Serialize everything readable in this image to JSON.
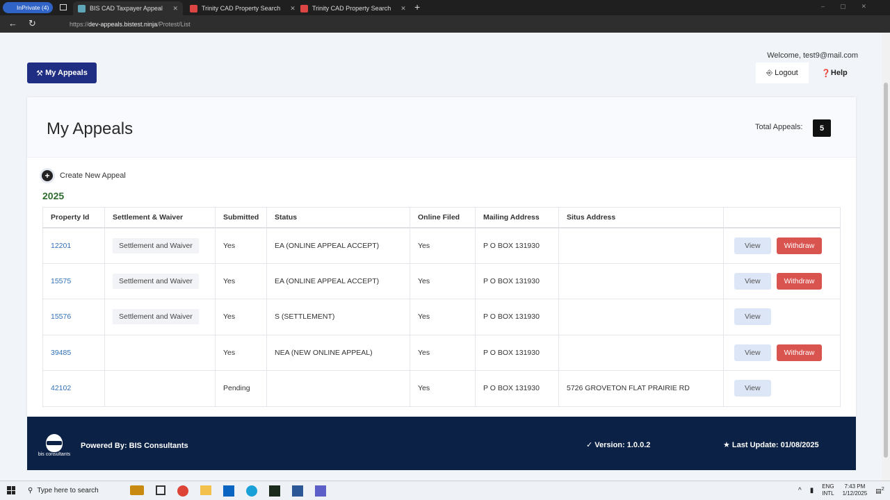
{
  "browser": {
    "profile": "InPrivate (4)",
    "tabs": [
      {
        "title": "BIS CAD Taxpayer Appeal",
        "active": true
      },
      {
        "title": "Trinity CAD Property Search"
      },
      {
        "title": "Trinity CAD Property Search"
      }
    ],
    "url_prefix": "https://",
    "url_domain": "dev-appeals.bistest.ninja",
    "url_path": "/Protest/List"
  },
  "header": {
    "my_appeals_button": "My Appeals",
    "welcome": "Welcome, test9@mail.com",
    "logout": "Logout",
    "help": "Help"
  },
  "main": {
    "title": "My Appeals",
    "total_label": "Total Appeals:",
    "total_count": "5",
    "create_label": "Create New Appeal",
    "year": "2025",
    "columns": [
      "Property Id",
      "Settlement & Waiver",
      "Submitted",
      "Status",
      "Online Filed",
      "Mailing Address",
      "Situs Address",
      ""
    ],
    "rows": [
      {
        "id": "12201",
        "settlement": "Settlement and Waiver",
        "submitted": "Yes",
        "status": "EA (ONLINE APPEAL ACCEPT)",
        "online": "Yes",
        "mailing": "P O BOX 131930",
        "situs": "",
        "view": "View",
        "withdraw": "Withdraw"
      },
      {
        "id": "15575",
        "settlement": "Settlement and Waiver",
        "submitted": "Yes",
        "status": "EA (ONLINE APPEAL ACCEPT)",
        "online": "Yes",
        "mailing": "P O BOX 131930",
        "situs": "",
        "view": "View",
        "withdraw": "Withdraw"
      },
      {
        "id": "15576",
        "settlement": "Settlement and Waiver",
        "submitted": "Yes",
        "status": "S (SETTLEMENT)",
        "online": "Yes",
        "mailing": "P O BOX 131930",
        "situs": "",
        "view": "View",
        "withdraw": null
      },
      {
        "id": "39485",
        "settlement": "",
        "submitted": "Yes",
        "status": "NEA (NEW ONLINE APPEAL)",
        "online": "Yes",
        "mailing": "P O BOX 131930",
        "situs": "",
        "view": "View",
        "withdraw": "Withdraw"
      },
      {
        "id": "42102",
        "settlement": "",
        "submitted": "Pending",
        "status": "",
        "online": "Yes",
        "mailing": "P O BOX 131930",
        "situs": "5726 GROVETON FLAT PRAIRIE RD",
        "view": "View",
        "withdraw": null
      }
    ]
  },
  "footer": {
    "logo_text": "bis consultants",
    "powered_by": "Powered By: BIS Consultants",
    "version": "Version: 1.0.0.2",
    "last_update": "Last Update: 01/08/2025"
  },
  "taskbar": {
    "search_placeholder": "Type here to search",
    "lang1": "ENG",
    "lang2": "INTL",
    "time": "7:43 PM",
    "date": "1/12/2025",
    "notifications": "2"
  },
  "colors": {
    "primary": "#1f2d83",
    "danger": "#d9534f",
    "footer": "#0b2145",
    "year": "#2e6b2e"
  }
}
